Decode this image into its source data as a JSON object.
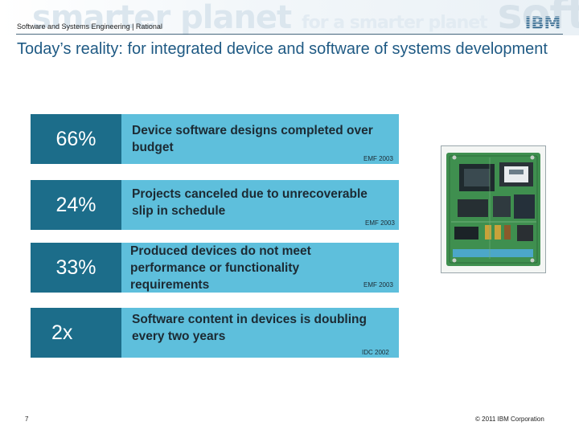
{
  "header": {
    "section_text": "Software and Systems Engineering | Rational",
    "watermark": {
      "part1": "smarter planet",
      "part2": "for a smarter planet",
      "part3": "soft"
    },
    "logo_text": "IBM"
  },
  "title": "Today’s reality: for integrated device and software of systems development",
  "stats": [
    {
      "value": "66%",
      "text": "Device software designs completed over budget",
      "source": "EMF 2003"
    },
    {
      "value": "24%",
      "text": "Projects canceled due to unrecoverable slip in schedule",
      "source": "EMF 2003"
    },
    {
      "value": "33%",
      "text": "Produced devices do not meet performance or functionality requirements",
      "source": "EMF 2003"
    },
    {
      "value": "2x",
      "text": "Software content in devices is doubling every two years",
      "source": "IDC 2002"
    }
  ],
  "footer": {
    "page_number": "7",
    "copyright": "© 2011 IBM Corporation"
  },
  "colors": {
    "title": "#1f5a84",
    "stat_value_bg": "#1c6d8a",
    "stat_row_bg": "#5ebfdc",
    "pcb_green": "#3f8f4f"
  }
}
